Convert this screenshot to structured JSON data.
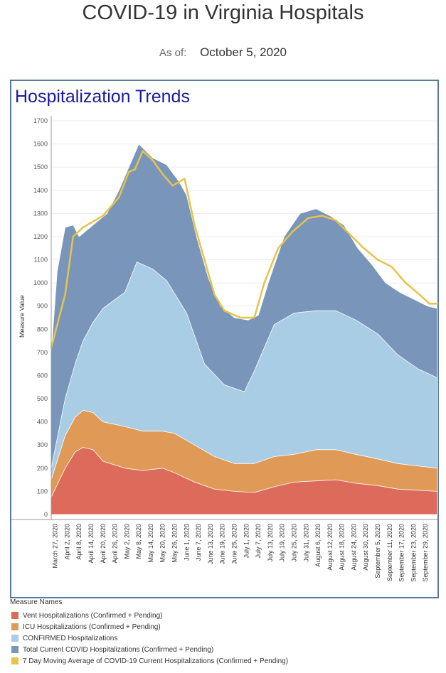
{
  "page": {
    "title": "COVID-19 in Virginia Hospitals",
    "asof_label": "As of:",
    "asof_date": "October 5, 2020"
  },
  "chart_data": {
    "type": "area",
    "title": "Hospitalization Trends",
    "ylabel": "Measure Value",
    "xlabel": "",
    "ylim": [
      0,
      1700
    ],
    "y_ticks": [
      0,
      100,
      200,
      300,
      400,
      500,
      600,
      700,
      800,
      900,
      1000,
      1100,
      1200,
      1300,
      1400,
      1500,
      1600,
      1700
    ],
    "x_range": [
      "2020-03-25",
      "2020-10-05"
    ],
    "x_tick_labels": [
      {
        "date": "2020-03-27",
        "label": "March 27, 2020"
      },
      {
        "date": "2020-04-02",
        "label": "April 2, 2020"
      },
      {
        "date": "2020-04-08",
        "label": "April 8, 2020"
      },
      {
        "date": "2020-04-14",
        "label": "April 14, 2020"
      },
      {
        "date": "2020-04-20",
        "label": "April 20, 2020"
      },
      {
        "date": "2020-04-26",
        "label": "April 26, 2020"
      },
      {
        "date": "2020-05-02",
        "label": "May 2, 2020"
      },
      {
        "date": "2020-05-08",
        "label": "May 8, 2020"
      },
      {
        "date": "2020-05-14",
        "label": "May 14, 2020"
      },
      {
        "date": "2020-05-20",
        "label": "May 20, 2020"
      },
      {
        "date": "2020-05-26",
        "label": "May 26, 2020"
      },
      {
        "date": "2020-06-01",
        "label": "June 1, 2020"
      },
      {
        "date": "2020-06-07",
        "label": "June 7, 2020"
      },
      {
        "date": "2020-06-13",
        "label": "June 13, 2020"
      },
      {
        "date": "2020-06-19",
        "label": "June 19, 2020"
      },
      {
        "date": "2020-06-25",
        "label": "June 25, 2020"
      },
      {
        "date": "2020-07-01",
        "label": "July 1, 2020"
      },
      {
        "date": "2020-07-07",
        "label": "July 7, 2020"
      },
      {
        "date": "2020-07-13",
        "label": "July 13, 2020"
      },
      {
        "date": "2020-07-19",
        "label": "July 19, 2020"
      },
      {
        "date": "2020-07-25",
        "label": "July 25, 2020"
      },
      {
        "date": "2020-07-31",
        "label": "July 31, 2020"
      },
      {
        "date": "2020-08-06",
        "label": "August 6, 2020"
      },
      {
        "date": "2020-08-12",
        "label": "August 12, 2020"
      },
      {
        "date": "2020-08-18",
        "label": "August 18, 2020"
      },
      {
        "date": "2020-08-24",
        "label": "August 24, 2020"
      },
      {
        "date": "2020-08-30",
        "label": "August 30, 2020"
      },
      {
        "date": "2020-09-05",
        "label": "September 5, 2020"
      },
      {
        "date": "2020-09-11",
        "label": "September 11, 2020"
      },
      {
        "date": "2020-09-17",
        "label": "September 17, 2020"
      },
      {
        "date": "2020-09-23",
        "label": "September 23, 2020"
      },
      {
        "date": "2020-09-29",
        "label": "September 29, 2020"
      }
    ],
    "grid": true,
    "legend_position": "bottom",
    "legend_title": "Measure Names",
    "series": [
      {
        "name": "Vent Hospitalizations (Confirmed + Pending)",
        "kind": "area",
        "color": "#dd6b5b",
        "x": [
          "2020-03-25",
          "2020-04-01",
          "2020-04-06",
          "2020-04-10",
          "2020-04-15",
          "2020-04-20",
          "2020-05-01",
          "2020-05-10",
          "2020-05-20",
          "2020-05-26",
          "2020-06-05",
          "2020-06-15",
          "2020-06-25",
          "2020-07-05",
          "2020-07-15",
          "2020-07-25",
          "2020-08-05",
          "2020-08-15",
          "2020-08-25",
          "2020-09-05",
          "2020-09-15",
          "2020-09-25",
          "2020-10-05"
        ],
        "values": [
          75,
          200,
          270,
          290,
          280,
          230,
          200,
          190,
          200,
          180,
          140,
          110,
          100,
          95,
          120,
          140,
          145,
          150,
          135,
          125,
          110,
          105,
          100
        ]
      },
      {
        "name": "ICU Hospitalizations (Confirmed + Pending)",
        "kind": "area",
        "color": "#e09a57",
        "x": [
          "2020-03-25",
          "2020-04-01",
          "2020-04-06",
          "2020-04-10",
          "2020-04-15",
          "2020-04-20",
          "2020-05-01",
          "2020-05-10",
          "2020-05-20",
          "2020-05-26",
          "2020-06-05",
          "2020-06-15",
          "2020-06-25",
          "2020-07-05",
          "2020-07-15",
          "2020-07-25",
          "2020-08-05",
          "2020-08-15",
          "2020-08-25",
          "2020-09-05",
          "2020-09-15",
          "2020-09-25",
          "2020-10-05"
        ],
        "values": [
          150,
          340,
          420,
          450,
          440,
          400,
          380,
          360,
          360,
          350,
          300,
          250,
          220,
          220,
          250,
          260,
          280,
          280,
          260,
          240,
          220,
          210,
          200
        ]
      },
      {
        "name": "CONFIRMED Hospitalizations",
        "kind": "area",
        "color": "#a9cde5",
        "x": [
          "2020-03-25",
          "2020-04-01",
          "2020-04-06",
          "2020-04-10",
          "2020-04-15",
          "2020-04-20",
          "2020-05-01",
          "2020-05-07",
          "2020-05-15",
          "2020-05-22",
          "2020-06-01",
          "2020-06-10",
          "2020-06-20",
          "2020-06-30",
          "2020-07-05",
          "2020-07-15",
          "2020-07-25",
          "2020-08-05",
          "2020-08-15",
          "2020-08-25",
          "2020-09-05",
          "2020-09-15",
          "2020-09-25",
          "2020-10-05"
        ],
        "values": [
          200,
          500,
          650,
          750,
          830,
          890,
          960,
          1090,
          1060,
          1010,
          870,
          650,
          560,
          530,
          620,
          820,
          870,
          880,
          880,
          840,
          780,
          690,
          630,
          590
        ]
      },
      {
        "name": "Total Current COVID Hospitalizations (Confirmed + Pending)",
        "kind": "area",
        "color": "#7996ba",
        "x": [
          "2020-03-25",
          "2020-03-28",
          "2020-04-01",
          "2020-04-05",
          "2020-04-08",
          "2020-04-15",
          "2020-04-22",
          "2020-04-28",
          "2020-05-03",
          "2020-05-08",
          "2020-05-15",
          "2020-05-22",
          "2020-05-28",
          "2020-06-01",
          "2020-06-06",
          "2020-06-12",
          "2020-06-18",
          "2020-06-25",
          "2020-07-02",
          "2020-07-07",
          "2020-07-12",
          "2020-07-20",
          "2020-07-28",
          "2020-08-05",
          "2020-08-12",
          "2020-08-19",
          "2020-08-26",
          "2020-09-02",
          "2020-09-09",
          "2020-09-16",
          "2020-09-23",
          "2020-09-30",
          "2020-10-05"
        ],
        "values": [
          700,
          1050,
          1240,
          1250,
          1200,
          1250,
          1300,
          1400,
          1500,
          1600,
          1540,
          1510,
          1440,
          1380,
          1200,
          1020,
          900,
          850,
          840,
          860,
          1000,
          1200,
          1300,
          1320,
          1290,
          1250,
          1150,
          1080,
          1000,
          960,
          930,
          900,
          890
        ]
      },
      {
        "name": "7 Day Moving Average of COVID-19 Current Hospitalizations (Confirmed + Pending)",
        "kind": "line",
        "color": "#e6c34a",
        "x": [
          "2020-03-25",
          "2020-04-01",
          "2020-04-05",
          "2020-04-10",
          "2020-04-20",
          "2020-04-28",
          "2020-05-03",
          "2020-05-06",
          "2020-05-10",
          "2020-05-15",
          "2020-05-20",
          "2020-05-25",
          "2020-05-31",
          "2020-06-05",
          "2020-06-10",
          "2020-06-15",
          "2020-06-20",
          "2020-06-28",
          "2020-07-05",
          "2020-07-10",
          "2020-07-17",
          "2020-07-24",
          "2020-08-01",
          "2020-08-08",
          "2020-08-15",
          "2020-08-22",
          "2020-08-29",
          "2020-09-05",
          "2020-09-12",
          "2020-09-19",
          "2020-09-26",
          "2020-10-01",
          "2020-10-05"
        ],
        "values": [
          720,
          950,
          1200,
          1240,
          1290,
          1370,
          1480,
          1490,
          1570,
          1530,
          1470,
          1420,
          1450,
          1250,
          1100,
          950,
          880,
          850,
          850,
          1000,
          1150,
          1220,
          1280,
          1290,
          1270,
          1210,
          1150,
          1100,
          1070,
          1000,
          950,
          910,
          910
        ]
      }
    ]
  }
}
